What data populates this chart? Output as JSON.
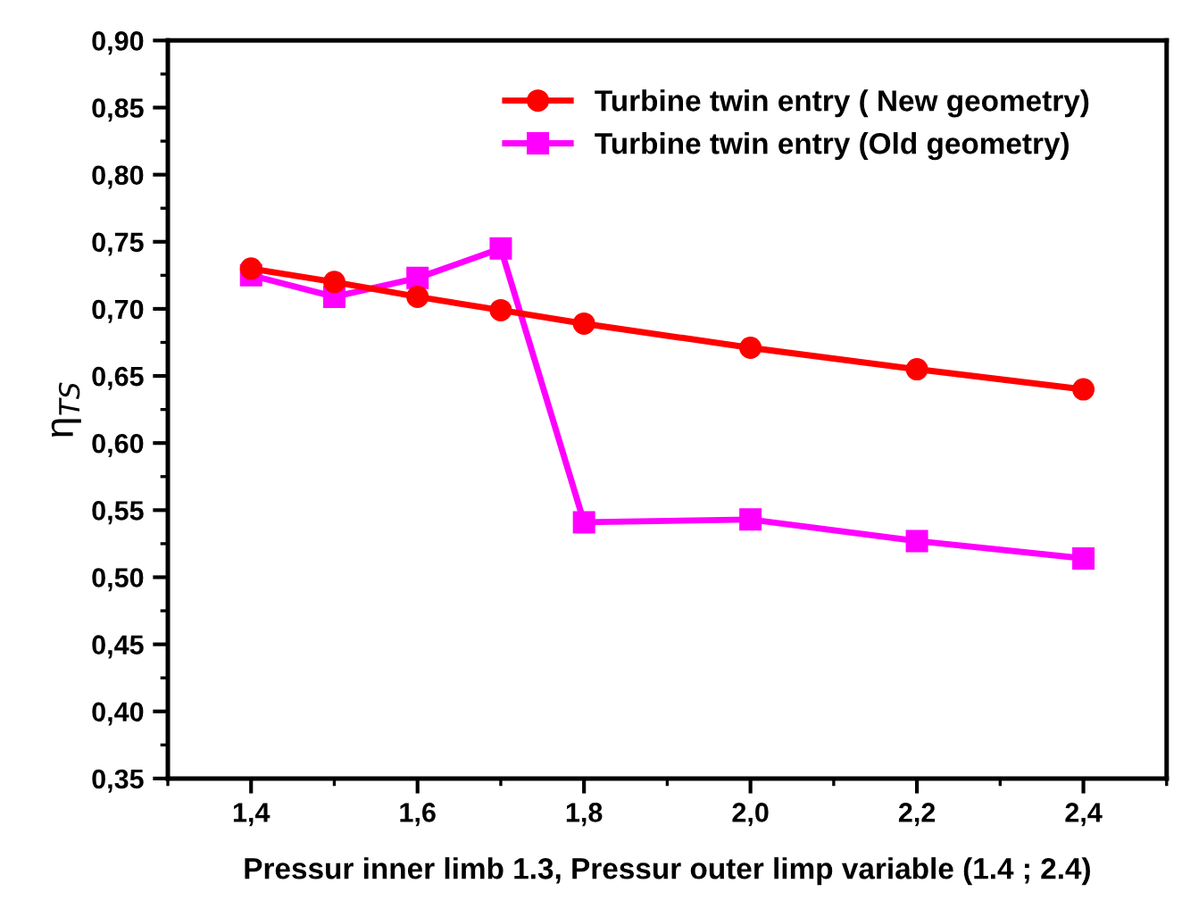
{
  "chart_data": {
    "type": "line",
    "xlabel": "Pressur inner limb 1.3, Pressur outer limp variable (1.4 ; 2.4)",
    "ylabel": "η$_{TS}$",
    "x": [
      1.4,
      1.5,
      1.6,
      1.7,
      1.8,
      2.0,
      2.2,
      2.4
    ],
    "series": [
      {
        "name": "Turbine twin entry ( New geometry)",
        "color": "#ff0000",
        "marker": "circle",
        "values": [
          0.73,
          0.72,
          0.709,
          0.699,
          0.689,
          0.671,
          0.655,
          0.64
        ]
      },
      {
        "name": "Turbine twin entry (Old geometry)",
        "color": "#ff00ff",
        "marker": "square",
        "values": [
          0.725,
          0.709,
          0.723,
          0.745,
          0.541,
          0.543,
          0.527,
          0.514
        ]
      }
    ],
    "xlim": [
      1.3,
      2.5
    ],
    "ylim": [
      0.35,
      0.9
    ],
    "xticks": [
      {
        "value": 1.4,
        "label": "1,4"
      },
      {
        "value": 1.6,
        "label": "1,6"
      },
      {
        "value": 1.8,
        "label": "1,8"
      },
      {
        "value": 2.0,
        "label": "2,0"
      },
      {
        "value": 2.2,
        "label": "2,2"
      },
      {
        "value": 2.4,
        "label": "2,4"
      }
    ],
    "yticks": [
      {
        "value": 0.35,
        "label": "0,35"
      },
      {
        "value": 0.4,
        "label": "0,40"
      },
      {
        "value": 0.45,
        "label": "0,45"
      },
      {
        "value": 0.5,
        "label": "0,50"
      },
      {
        "value": 0.55,
        "label": "0,55"
      },
      {
        "value": 0.6,
        "label": "0,60"
      },
      {
        "value": 0.65,
        "label": "0,65"
      },
      {
        "value": 0.7,
        "label": "0,70"
      },
      {
        "value": 0.75,
        "label": "0,75"
      },
      {
        "value": 0.8,
        "label": "0,80"
      },
      {
        "value": 0.85,
        "label": "0,85"
      },
      {
        "value": 0.9,
        "label": "0,90"
      }
    ],
    "legend": "top right",
    "grid": false,
    "line_style": "solid"
  }
}
